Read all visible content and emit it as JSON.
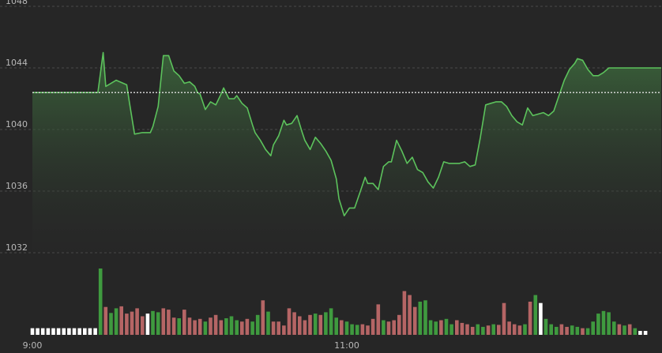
{
  "chart_data": {
    "type": "line",
    "title": "",
    "xlabel": "",
    "ylabel": "",
    "ylim": [
      1032,
      1048
    ],
    "yticks": [
      1032,
      1036,
      1040,
      1044,
      1048
    ],
    "ytick_labels": [
      "1032",
      "1036",
      "1040",
      "1044",
      "1048"
    ],
    "xticks": [
      0,
      120
    ],
    "xtick_labels": [
      "9:00",
      "11:00"
    ],
    "x_max_minutes": 240,
    "reference_price": 1042.4,
    "grid": true,
    "legend": "none",
    "colors": {
      "line": "#5cc25c",
      "area_top": "#3d6b3d",
      "up_bar": "#3f9a3f",
      "down_bar": "#b56565",
      "neutral_bar": "#ffffff",
      "grid": "#4a4a4a",
      "reference": "#e0e0e0"
    },
    "series": [
      {
        "minute": [
          0,
          25,
          27,
          28,
          32,
          36,
          37,
          39,
          42,
          45,
          46,
          48,
          50,
          52,
          54,
          56,
          58,
          60,
          62,
          63,
          64,
          66,
          68,
          70,
          72,
          73,
          75,
          77,
          78,
          80,
          82,
          84,
          85,
          87,
          89,
          91,
          92,
          94,
          96,
          97,
          99,
          101,
          103,
          104,
          106,
          108,
          110,
          112,
          114,
          116,
          117,
          119,
          121,
          123,
          125,
          127,
          128,
          130,
          132,
          134,
          136,
          137,
          139,
          141,
          143,
          145,
          147,
          149,
          151,
          153,
          155,
          157,
          159,
          161,
          163,
          165,
          167,
          169,
          171,
          173,
          175,
          177,
          179,
          181,
          183,
          185,
          187,
          189,
          191,
          193,
          195,
          197,
          199,
          201,
          203,
          205,
          207,
          208,
          210,
          212,
          214,
          216,
          218,
          220,
          222,
          224,
          226,
          228,
          230,
          232,
          234,
          236,
          238,
          240
        ],
        "values": [
          1042.4,
          1042.4,
          1045.0,
          1042.8,
          1043.2,
          1042.9,
          1041.8,
          1039.7,
          1039.8,
          1039.8,
          1040.2,
          1041.5,
          1044.8,
          1044.8,
          1043.8,
          1043.5,
          1043.0,
          1043.1,
          1042.8,
          1042.4,
          1042.3,
          1041.3,
          1041.8,
          1041.6,
          1042.3,
          1042.7,
          1042.0,
          1042.0,
          1042.2,
          1041.7,
          1041.4,
          1040.3,
          1039.8,
          1039.3,
          1038.7,
          1038.3,
          1039.0,
          1039.6,
          1040.6,
          1040.3,
          1040.4,
          1040.9,
          1039.8,
          1039.3,
          1038.7,
          1039.5,
          1039.1,
          1038.6,
          1038.0,
          1036.8,
          1035.5,
          1034.4,
          1034.9,
          1034.9,
          1035.9,
          1036.9,
          1036.5,
          1036.5,
          1036.1,
          1037.6,
          1037.9,
          1037.9,
          1039.3,
          1038.6,
          1037.8,
          1038.2,
          1037.4,
          1037.2,
          1036.6,
          1036.2,
          1036.9,
          1037.9,
          1037.8,
          1037.8,
          1037.8,
          1037.9,
          1037.6,
          1037.7,
          1039.5,
          1041.6,
          1041.7,
          1041.8,
          1041.8,
          1041.5,
          1040.9,
          1040.5,
          1040.3,
          1041.4,
          1040.9,
          1041.0,
          1041.1,
          1040.9,
          1041.2,
          1042.2,
          1043.2,
          1043.9,
          1044.3,
          1044.6,
          1044.5,
          1043.9,
          1043.5,
          1043.5,
          1043.7,
          1044.0,
          1044.0,
          1044.0,
          1044.0,
          1044.0,
          1044.0,
          1044.0,
          1044.0,
          1044.0,
          1044.0,
          1044.0
        ]
      }
    ],
    "volume": {
      "unit_interval_minutes": 2,
      "bars": [
        {
          "v": 0.1,
          "d": "n"
        },
        {
          "v": 0.1,
          "d": "n"
        },
        {
          "v": 0.1,
          "d": "n"
        },
        {
          "v": 0.1,
          "d": "n"
        },
        {
          "v": 0.1,
          "d": "n"
        },
        {
          "v": 0.1,
          "d": "n"
        },
        {
          "v": 0.1,
          "d": "n"
        },
        {
          "v": 0.1,
          "d": "n"
        },
        {
          "v": 0.1,
          "d": "n"
        },
        {
          "v": 0.1,
          "d": "n"
        },
        {
          "v": 0.1,
          "d": "n"
        },
        {
          "v": 0.1,
          "d": "n"
        },
        {
          "v": 0.1,
          "d": "n"
        },
        {
          "v": 1.0,
          "d": "u"
        },
        {
          "v": 0.42,
          "d": "d"
        },
        {
          "v": 0.33,
          "d": "u"
        },
        {
          "v": 0.4,
          "d": "u"
        },
        {
          "v": 0.43,
          "d": "d"
        },
        {
          "v": 0.32,
          "d": "d"
        },
        {
          "v": 0.35,
          "d": "d"
        },
        {
          "v": 0.4,
          "d": "d"
        },
        {
          "v": 0.28,
          "d": "d"
        },
        {
          "v": 0.32,
          "d": "n"
        },
        {
          "v": 0.36,
          "d": "u"
        },
        {
          "v": 0.34,
          "d": "u"
        },
        {
          "v": 0.4,
          "d": "d"
        },
        {
          "v": 0.38,
          "d": "d"
        },
        {
          "v": 0.26,
          "d": "d"
        },
        {
          "v": 0.25,
          "d": "u"
        },
        {
          "v": 0.38,
          "d": "d"
        },
        {
          "v": 0.26,
          "d": "d"
        },
        {
          "v": 0.22,
          "d": "d"
        },
        {
          "v": 0.24,
          "d": "d"
        },
        {
          "v": 0.2,
          "d": "u"
        },
        {
          "v": 0.26,
          "d": "d"
        },
        {
          "v": 0.3,
          "d": "d"
        },
        {
          "v": 0.22,
          "d": "d"
        },
        {
          "v": 0.25,
          "d": "u"
        },
        {
          "v": 0.28,
          "d": "u"
        },
        {
          "v": 0.22,
          "d": "u"
        },
        {
          "v": 0.2,
          "d": "d"
        },
        {
          "v": 0.24,
          "d": "d"
        },
        {
          "v": 0.2,
          "d": "u"
        },
        {
          "v": 0.3,
          "d": "u"
        },
        {
          "v": 0.52,
          "d": "d"
        },
        {
          "v": 0.35,
          "d": "u"
        },
        {
          "v": 0.2,
          "d": "d"
        },
        {
          "v": 0.2,
          "d": "d"
        },
        {
          "v": 0.14,
          "d": "d"
        },
        {
          "v": 0.4,
          "d": "d"
        },
        {
          "v": 0.34,
          "d": "d"
        },
        {
          "v": 0.28,
          "d": "d"
        },
        {
          "v": 0.22,
          "d": "d"
        },
        {
          "v": 0.3,
          "d": "d"
        },
        {
          "v": 0.32,
          "d": "u"
        },
        {
          "v": 0.3,
          "d": "d"
        },
        {
          "v": 0.34,
          "d": "u"
        },
        {
          "v": 0.4,
          "d": "u"
        },
        {
          "v": 0.26,
          "d": "u"
        },
        {
          "v": 0.22,
          "d": "d"
        },
        {
          "v": 0.2,
          "d": "u"
        },
        {
          "v": 0.16,
          "d": "u"
        },
        {
          "v": 0.15,
          "d": "u"
        },
        {
          "v": 0.16,
          "d": "d"
        },
        {
          "v": 0.14,
          "d": "d"
        },
        {
          "v": 0.24,
          "d": "d"
        },
        {
          "v": 0.46,
          "d": "d"
        },
        {
          "v": 0.22,
          "d": "u"
        },
        {
          "v": 0.2,
          "d": "d"
        },
        {
          "v": 0.22,
          "d": "d"
        },
        {
          "v": 0.3,
          "d": "d"
        },
        {
          "v": 0.66,
          "d": "d"
        },
        {
          "v": 0.6,
          "d": "d"
        },
        {
          "v": 0.42,
          "d": "d"
        },
        {
          "v": 0.5,
          "d": "u"
        },
        {
          "v": 0.52,
          "d": "u"
        },
        {
          "v": 0.22,
          "d": "u"
        },
        {
          "v": 0.2,
          "d": "u"
        },
        {
          "v": 0.22,
          "d": "d"
        },
        {
          "v": 0.24,
          "d": "u"
        },
        {
          "v": 0.16,
          "d": "u"
        },
        {
          "v": 0.22,
          "d": "d"
        },
        {
          "v": 0.18,
          "d": "d"
        },
        {
          "v": 0.16,
          "d": "d"
        },
        {
          "v": 0.12,
          "d": "d"
        },
        {
          "v": 0.16,
          "d": "u"
        },
        {
          "v": 0.12,
          "d": "u"
        },
        {
          "v": 0.14,
          "d": "d"
        },
        {
          "v": 0.16,
          "d": "u"
        },
        {
          "v": 0.15,
          "d": "d"
        },
        {
          "v": 0.48,
          "d": "d"
        },
        {
          "v": 0.2,
          "d": "d"
        },
        {
          "v": 0.16,
          "d": "d"
        },
        {
          "v": 0.14,
          "d": "d"
        },
        {
          "v": 0.16,
          "d": "u"
        },
        {
          "v": 0.5,
          "d": "d"
        },
        {
          "v": 0.6,
          "d": "u"
        },
        {
          "v": 0.48,
          "d": "n"
        },
        {
          "v": 0.24,
          "d": "u"
        },
        {
          "v": 0.16,
          "d": "u"
        },
        {
          "v": 0.12,
          "d": "u"
        },
        {
          "v": 0.16,
          "d": "d"
        },
        {
          "v": 0.12,
          "d": "d"
        },
        {
          "v": 0.14,
          "d": "u"
        },
        {
          "v": 0.12,
          "d": "u"
        },
        {
          "v": 0.1,
          "d": "d"
        },
        {
          "v": 0.1,
          "d": "u"
        },
        {
          "v": 0.2,
          "d": "u"
        },
        {
          "v": 0.32,
          "d": "u"
        },
        {
          "v": 0.36,
          "d": "u"
        },
        {
          "v": 0.34,
          "d": "u"
        },
        {
          "v": 0.2,
          "d": "u"
        },
        {
          "v": 0.16,
          "d": "d"
        },
        {
          "v": 0.14,
          "d": "u"
        },
        {
          "v": 0.16,
          "d": "d"
        },
        {
          "v": 0.1,
          "d": "u"
        },
        {
          "v": 0.06,
          "d": "n"
        },
        {
          "v": 0.06,
          "d": "n"
        }
      ]
    }
  }
}
